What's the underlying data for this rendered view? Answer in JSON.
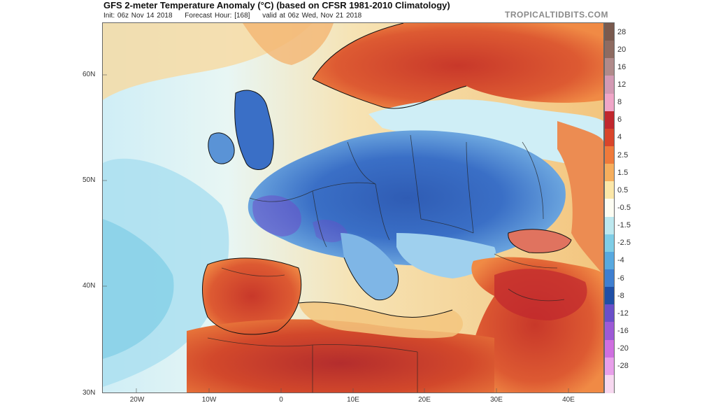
{
  "header": {
    "title": "GFS 2-meter Temperature Anomaly (°C) (based on CFSR 1981-2010 Climatology)",
    "init": "Init: 06z Nov 14 2018",
    "forecast_hour": "Forecast Hour: [168]",
    "valid": "valid at 06z Wed, Nov 21 2018",
    "brand": "TROPICALTIDBITS.COM"
  },
  "map": {
    "region": "Europe, North Africa, Middle East",
    "lat_labels": [
      "60N",
      "50N",
      "40N",
      "30N"
    ],
    "lon_labels": [
      "20W",
      "10W",
      "0",
      "10E",
      "20E",
      "30E",
      "40E"
    ],
    "colors": {
      "ocean_warm": "#f6e3b4",
      "ocean_cool": "#cfeef6",
      "cold_core": "#2f5fb8",
      "very_cold": "#6b4fc8",
      "hot_land": "#d84a2a",
      "borders": "#222222"
    }
  },
  "colorbar": {
    "labels": [
      "28",
      "20",
      "16",
      "12",
      "8",
      "6",
      "4",
      "2.5",
      "1.5",
      "0.5",
      "-0.5",
      "-1.5",
      "-2.5",
      "-4",
      "-6",
      "-8",
      "-12",
      "-16",
      "-20",
      "-28"
    ],
    "colors": [
      "#7a5a4e",
      "#8e6b61",
      "#b08a8a",
      "#d39ab4",
      "#f0a6c8",
      "#c1272d",
      "#d9452b",
      "#ef7a3b",
      "#f6ae5d",
      "#fce7a8",
      "#fdfdf3",
      "#bde8ef",
      "#7fcde6",
      "#58a9e0",
      "#3f7fd0",
      "#1f4fa6",
      "#6a4fc9",
      "#9d5ad6",
      "#cf6fe0",
      "#e89fea",
      "#f7d8f0"
    ]
  }
}
